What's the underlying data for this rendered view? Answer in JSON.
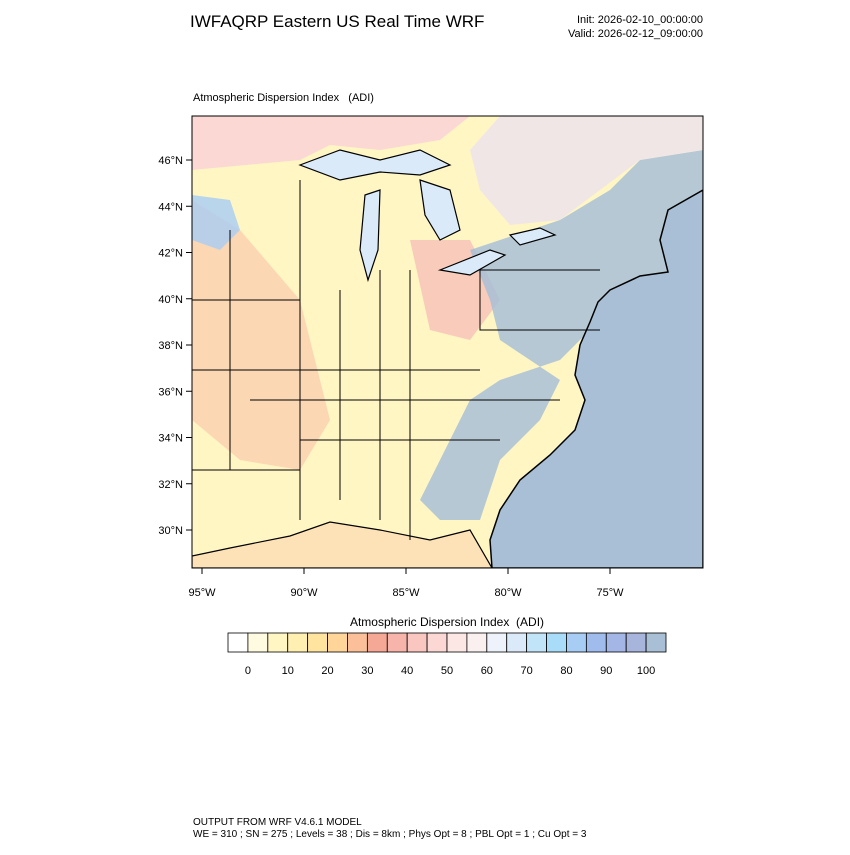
{
  "header": {
    "title": "IWFAQRP Eastern US Real Time WRF",
    "init": "Init: 2026-02-10_00:00:00",
    "valid": "Valid: 2026-02-12_09:00:00"
  },
  "map": {
    "subtitle": "Atmospheric Dispersion Index   (ADI)",
    "lat_labels": [
      "46°N",
      "44°N",
      "42°N",
      "40°N",
      "38°N",
      "36°N",
      "34°N",
      "32°N",
      "30°N"
    ],
    "lon_labels": [
      "95°W",
      "90°W",
      "85°W",
      "80°W",
      "75°W"
    ]
  },
  "colorbar": {
    "title": "Atmospheric Dispersion Index  (ADI)",
    "colors": [
      "#ffffff",
      "#fffbe0",
      "#fff6c4",
      "#ffefb0",
      "#ffe4a0",
      "#ffd59a",
      "#fbc09a",
      "#f5a896",
      "#f6b4ab",
      "#f9c6c0",
      "#fbd8d4",
      "#fde7e5",
      "#fbf0f0",
      "#eef2fa",
      "#dbeaf8",
      "#c2e4f8",
      "#a8dcf8",
      "#a8cdf5",
      "#a0bcec",
      "#a3b6e6",
      "#a7b5dc",
      "#a8bfd6"
    ],
    "ticks": [
      0,
      10,
      20,
      30,
      40,
      50,
      60,
      70,
      80,
      90,
      100
    ]
  },
  "footer": {
    "line1": "OUTPUT FROM WRF V4.6.1 MODEL",
    "line2": "WE = 310 ; SN = 275 ; Levels = 38 ; Dis = 8km ; Phys Opt = 8 ; PBL Opt = 1 ; Cu Opt = 3"
  }
}
